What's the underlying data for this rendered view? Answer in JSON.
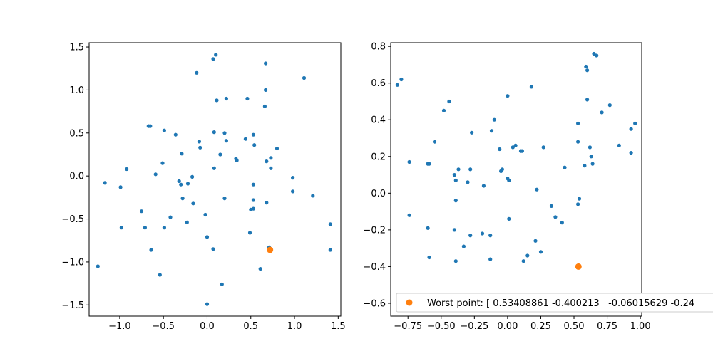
{
  "chart_data": [
    {
      "type": "scatter",
      "xlim": [
        -1.35,
        1.53
      ],
      "ylim": [
        -1.63,
        1.55
      ],
      "xticks": [
        -1.0,
        -0.5,
        0.0,
        0.5,
        1.0,
        1.5
      ],
      "xtick_labels": [
        "−1.0",
        "−0.5",
        "0.0",
        "0.5",
        "1.0",
        "1.5"
      ],
      "yticks": [
        -1.5,
        -1.0,
        -0.5,
        0.0,
        0.5,
        1.0,
        1.5
      ],
      "ytick_labels": [
        "−1.5",
        "−1.0",
        "−0.5",
        "0.0",
        "0.5",
        "1.0",
        "1.5"
      ],
      "grid": false,
      "series": [
        {
          "color": "#1f77b4",
          "marker_size": "small",
          "points": [
            [
              0.1,
              1.41
            ],
            [
              0.07,
              1.36
            ],
            [
              -0.12,
              1.2
            ],
            [
              0.67,
              1.31
            ],
            [
              1.11,
              1.14
            ],
            [
              0.67,
              1.0
            ],
            [
              0.11,
              0.88
            ],
            [
              0.22,
              0.9
            ],
            [
              0.46,
              0.9
            ],
            [
              0.66,
              0.81
            ],
            [
              -0.65,
              0.58
            ],
            [
              -0.67,
              0.58
            ],
            [
              -0.49,
              0.53
            ],
            [
              -0.36,
              0.48
            ],
            [
              0.08,
              0.51
            ],
            [
              0.2,
              0.5
            ],
            [
              0.53,
              0.48
            ],
            [
              -0.09,
              0.4
            ],
            [
              0.22,
              0.41
            ],
            [
              0.44,
              0.43
            ],
            [
              -0.08,
              0.33
            ],
            [
              0.54,
              0.36
            ],
            [
              0.8,
              0.32
            ],
            [
              0.15,
              0.25
            ],
            [
              -0.29,
              0.26
            ],
            [
              0.73,
              0.21
            ],
            [
              0.33,
              0.2
            ],
            [
              0.34,
              0.18
            ],
            [
              0.68,
              0.17
            ],
            [
              -0.51,
              0.15
            ],
            [
              0.73,
              0.09
            ],
            [
              -0.92,
              0.08
            ],
            [
              0.08,
              0.09
            ],
            [
              -0.59,
              0.02
            ],
            [
              -0.17,
              -0.01
            ],
            [
              0.98,
              -0.02
            ],
            [
              -1.17,
              -0.08
            ],
            [
              -0.32,
              -0.06
            ],
            [
              -0.3,
              -0.1
            ],
            [
              -0.22,
              -0.09
            ],
            [
              0.53,
              -0.1
            ],
            [
              -0.99,
              -0.13
            ],
            [
              0.98,
              -0.18
            ],
            [
              1.21,
              -0.23
            ],
            [
              -0.28,
              -0.26
            ],
            [
              0.2,
              -0.26
            ],
            [
              0.53,
              -0.28
            ],
            [
              -0.16,
              -0.32
            ],
            [
              0.68,
              -0.31
            ],
            [
              0.53,
              -0.38
            ],
            [
              0.5,
              -0.39
            ],
            [
              -0.75,
              -0.41
            ],
            [
              -0.02,
              -0.45
            ],
            [
              -0.42,
              -0.48
            ],
            [
              -0.23,
              -0.54
            ],
            [
              1.41,
              -0.56
            ],
            [
              -0.98,
              -0.6
            ],
            [
              -0.71,
              -0.6
            ],
            [
              -0.49,
              -0.6
            ],
            [
              0.49,
              -0.66
            ],
            [
              0.0,
              -0.71
            ],
            [
              0.71,
              -0.83
            ],
            [
              -0.64,
              -0.86
            ],
            [
              0.07,
              -0.85
            ],
            [
              1.41,
              -0.86
            ],
            [
              -1.25,
              -1.05
            ],
            [
              0.61,
              -1.08
            ],
            [
              -0.54,
              -1.15
            ],
            [
              0.17,
              -1.26
            ],
            [
              0.0,
              -1.49
            ]
          ]
        },
        {
          "color": "#ff7f0e",
          "marker_size": "large",
          "points": [
            [
              0.72,
              -0.86
            ]
          ]
        }
      ]
    },
    {
      "type": "scatter",
      "xlim": [
        -0.88,
        1.01
      ],
      "ylim": [
        -0.67,
        0.82
      ],
      "xticks": [
        -0.75,
        -0.5,
        -0.25,
        0.0,
        0.25,
        0.5,
        0.75,
        1.0
      ],
      "xtick_labels": [
        "−0.75",
        "−0.50",
        "−0.25",
        "0.00",
        "0.25",
        "0.50",
        "0.75",
        "1.00"
      ],
      "yticks": [
        -0.6,
        -0.4,
        -0.2,
        0.0,
        0.2,
        0.4,
        0.6,
        0.8
      ],
      "ytick_labels": [
        "−0.6",
        "−0.4",
        "−0.2",
        "0.0",
        "0.2",
        "0.4",
        "0.6",
        "0.8"
      ],
      "grid": false,
      "legend": {
        "placement": "lower-right",
        "entries": [
          {
            "label": "Worst point: [ 0.53408861 -0.400213   -0.06015629 -0.24",
            "color": "#ff7f0e"
          }
        ]
      },
      "series": [
        {
          "color": "#1f77b4",
          "marker_size": "small",
          "points": [
            [
              0.65,
              0.76
            ],
            [
              0.67,
              0.75
            ],
            [
              0.59,
              0.69
            ],
            [
              0.6,
              0.67
            ],
            [
              -0.8,
              0.62
            ],
            [
              -0.83,
              0.59
            ],
            [
              0.18,
              0.58
            ],
            [
              0.0,
              0.53
            ],
            [
              0.6,
              0.51
            ],
            [
              -0.44,
              0.5
            ],
            [
              0.77,
              0.48
            ],
            [
              -0.48,
              0.45
            ],
            [
              0.71,
              0.44
            ],
            [
              -0.1,
              0.4
            ],
            [
              0.53,
              0.38
            ],
            [
              0.96,
              0.38
            ],
            [
              0.93,
              0.35
            ],
            [
              -0.12,
              0.34
            ],
            [
              -0.27,
              0.33
            ],
            [
              -0.55,
              0.28
            ],
            [
              0.53,
              0.28
            ],
            [
              0.84,
              0.26
            ],
            [
              0.04,
              0.25
            ],
            [
              0.06,
              0.26
            ],
            [
              0.27,
              0.25
            ],
            [
              0.62,
              0.25
            ],
            [
              -0.06,
              0.24
            ],
            [
              0.1,
              0.23
            ],
            [
              0.11,
              0.23
            ],
            [
              0.93,
              0.22
            ],
            [
              0.63,
              0.2
            ],
            [
              -0.74,
              0.17
            ],
            [
              -0.6,
              0.16
            ],
            [
              -0.59,
              0.16
            ],
            [
              0.58,
              0.15
            ],
            [
              0.64,
              0.16
            ],
            [
              0.43,
              0.14
            ],
            [
              -0.37,
              0.13
            ],
            [
              -0.28,
              0.13
            ],
            [
              -0.05,
              0.12
            ],
            [
              -0.04,
              0.13
            ],
            [
              -0.4,
              0.1
            ],
            [
              -0.39,
              0.07
            ],
            [
              -0.3,
              0.06
            ],
            [
              0.0,
              0.08
            ],
            [
              0.01,
              0.07
            ],
            [
              -0.18,
              0.04
            ],
            [
              0.22,
              0.02
            ],
            [
              -0.39,
              -0.04
            ],
            [
              0.33,
              -0.07
            ],
            [
              -0.74,
              -0.12
            ],
            [
              0.36,
              -0.13
            ],
            [
              0.01,
              -0.14
            ],
            [
              0.41,
              -0.16
            ],
            [
              -0.6,
              -0.19
            ],
            [
              -0.4,
              -0.2
            ],
            [
              -0.19,
              -0.22
            ],
            [
              -0.13,
              -0.23
            ],
            [
              -0.28,
              -0.23
            ],
            [
              0.21,
              -0.26
            ],
            [
              -0.33,
              -0.29
            ],
            [
              0.25,
              -0.32
            ],
            [
              0.15,
              -0.34
            ],
            [
              -0.59,
              -0.35
            ],
            [
              -0.13,
              -0.36
            ],
            [
              -0.39,
              -0.37
            ],
            [
              0.12,
              -0.37
            ],
            [
              0.54,
              -0.03
            ],
            [
              0.53,
              -0.06
            ]
          ]
        },
        {
          "color": "#ff7f0e",
          "marker_size": "large",
          "points": [
            [
              0.534,
              -0.4
            ]
          ]
        }
      ]
    }
  ]
}
